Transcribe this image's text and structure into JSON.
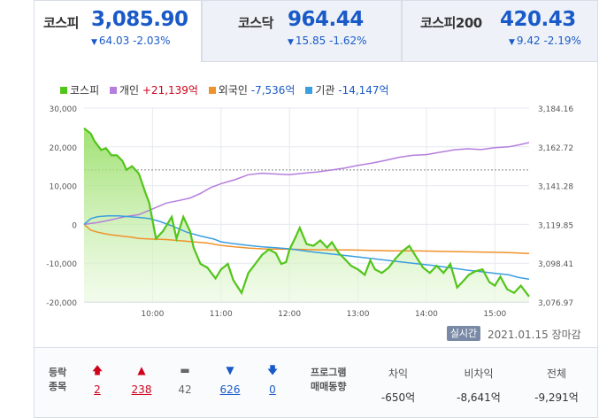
{
  "tabs": [
    {
      "name": "코스피",
      "value": "3,085.90",
      "change": "64.03 -2.03%",
      "active": true
    },
    {
      "name": "코스닥",
      "value": "964.44",
      "change": "15.85 -1.62%",
      "active": false
    },
    {
      "name": "코스피200",
      "value": "420.43",
      "change": "9.42 -2.19%",
      "active": false
    }
  ],
  "legend": {
    "kospi": "코스피",
    "individual": "개인",
    "individual_value": "+21,139억",
    "foreign": "외국인",
    "foreign_value": "-7,536억",
    "institution": "기관",
    "institution_value": "-14,147억"
  },
  "status": {
    "realtime_badge": "실시간",
    "date": "2021.01.15",
    "market_status": "장마감"
  },
  "breadth": {
    "label_line1": "등락",
    "label_line2": "종목",
    "upper_limit": "2",
    "rise": "238",
    "flat": "42",
    "fall": "626",
    "lower_limit": "0"
  },
  "program": {
    "label_line1": "프로그램",
    "label_line2": "매매동향",
    "arbitrage_label": "차익",
    "arbitrage_value": "-650억",
    "non_arbitrage_label": "비차익",
    "non_arbitrage_value": "-8,641억",
    "total_label": "전체",
    "total_value": "-9,291억"
  },
  "colors": {
    "kospi": "#52c41a",
    "individual": "#b57edc",
    "foreign": "#f0922b",
    "institution": "#3b9ee0",
    "up": "#d0021b",
    "down": "#1a5ac8"
  },
  "chart_data": {
    "type": "line",
    "x_ticks": [
      "10:00",
      "11:00",
      "12:00",
      "13:00",
      "14:00",
      "15:00"
    ],
    "y_left_ticks": [
      "30,000",
      "20,000",
      "10,000",
      "0",
      "-10,000",
      "-20,000"
    ],
    "y_left_range": [
      -20000,
      30000
    ],
    "y_right_ticks": [
      "3,184.16",
      "3,162.72",
      "3,141.28",
      "3,119.85",
      "3,098.41",
      "3,076.97"
    ],
    "y_right_range": [
      3076.97,
      3184.16
    ],
    "reference_line_right": 3149.93,
    "x_range_hours": [
      9.0,
      15.5
    ],
    "series": [
      {
        "name": "코스피",
        "axis": "right",
        "x": [
          9.0,
          9.1,
          9.15,
          9.25,
          9.32,
          9.4,
          9.48,
          9.56,
          9.62,
          9.7,
          9.8,
          9.9,
          9.95,
          10.05,
          10.15,
          10.28,
          10.35,
          10.45,
          10.55,
          10.6,
          10.7,
          10.8,
          10.92,
          11.0,
          11.1,
          11.18,
          11.3,
          11.4,
          11.5,
          11.6,
          11.7,
          11.8,
          11.88,
          11.95,
          12.0,
          12.08,
          12.15,
          12.25,
          12.35,
          12.45,
          12.55,
          12.62,
          12.72,
          12.8,
          12.9,
          13.0,
          13.1,
          13.18,
          13.25,
          13.35,
          13.45,
          13.55,
          13.65,
          13.75,
          13.85,
          13.95,
          14.05,
          14.15,
          14.25,
          14.35,
          14.45,
          14.55,
          14.62,
          14.72,
          14.82,
          14.92,
          15.0,
          15.08,
          15.18,
          15.28,
          15.38,
          15.5
        ],
        "values": [
          3173,
          3170,
          3166,
          3161,
          3162,
          3158,
          3158,
          3155,
          3150,
          3152,
          3148,
          3137,
          3132,
          3112,
          3116,
          3124,
          3112,
          3124,
          3116,
          3107,
          3098,
          3096,
          3090,
          3095,
          3098,
          3089,
          3082,
          3093,
          3098,
          3103,
          3106,
          3104,
          3098,
          3099,
          3106,
          3112,
          3118,
          3109,
          3108,
          3111,
          3107,
          3110,
          3104,
          3101,
          3097,
          3095,
          3092,
          3100,
          3095,
          3093,
          3096,
          3101,
          3105,
          3108,
          3102,
          3096,
          3093,
          3097,
          3093,
          3098,
          3085,
          3089,
          3092,
          3094,
          3095,
          3088,
          3086,
          3091,
          3084,
          3082,
          3086,
          3080
        ]
      },
      {
        "name": "개인",
        "axis": "left",
        "x": [
          9.0,
          9.2,
          9.4,
          9.6,
          9.8,
          10.0,
          10.2,
          10.4,
          10.55,
          10.7,
          10.85,
          11.0,
          11.2,
          11.4,
          11.6,
          11.8,
          12.0,
          12.2,
          12.4,
          12.6,
          12.8,
          13.0,
          13.2,
          13.4,
          13.6,
          13.8,
          14.0,
          14.2,
          14.4,
          14.6,
          14.8,
          15.0,
          15.2,
          15.35,
          15.5
        ],
        "values": [
          0,
          500,
          1200,
          2000,
          2500,
          4000,
          5500,
          6200,
          6800,
          8000,
          9500,
          10500,
          11500,
          12800,
          13200,
          13000,
          12800,
          13200,
          13500,
          14000,
          14500,
          15200,
          15800,
          16500,
          17300,
          17800,
          18000,
          18600,
          19200,
          19500,
          19300,
          19800,
          20000,
          20500,
          21100
        ]
      },
      {
        "name": "외국인",
        "axis": "left",
        "x": [
          9.0,
          9.1,
          9.2,
          9.3,
          9.4,
          9.5,
          9.6,
          9.7,
          9.8,
          9.9,
          10.0,
          10.2,
          10.4,
          10.6,
          10.8,
          11.0,
          11.2,
          11.4,
          11.6,
          11.8,
          12.0,
          12.3,
          12.6,
          12.9,
          13.2,
          13.5,
          13.8,
          14.1,
          14.4,
          14.7,
          15.0,
          15.25,
          15.5
        ],
        "values": [
          0,
          -1500,
          -2000,
          -2400,
          -2700,
          -2900,
          -3100,
          -3300,
          -3600,
          -3700,
          -3800,
          -3900,
          -4200,
          -4500,
          -4800,
          -5400,
          -5800,
          -6100,
          -6300,
          -6400,
          -6400,
          -6500,
          -6600,
          -6600,
          -6700,
          -6800,
          -6800,
          -6900,
          -7000,
          -7100,
          -7200,
          -7300,
          -7500
        ]
      },
      {
        "name": "기관",
        "axis": "left",
        "x": [
          9.0,
          9.1,
          9.2,
          9.35,
          9.5,
          9.65,
          9.8,
          9.95,
          10.1,
          10.3,
          10.5,
          10.7,
          10.9,
          11.0,
          11.2,
          11.4,
          11.6,
          11.8,
          12.0,
          12.3,
          12.6,
          12.9,
          13.2,
          13.5,
          13.8,
          14.1,
          14.4,
          14.6,
          14.8,
          15.0,
          15.2,
          15.35,
          15.5
        ],
        "values": [
          0,
          1500,
          2000,
          2200,
          2200,
          2000,
          1800,
          1500,
          800,
          -500,
          -2000,
          -3000,
          -3800,
          -4500,
          -5000,
          -5400,
          -5800,
          -6000,
          -6300,
          -7000,
          -7600,
          -8200,
          -8800,
          -9400,
          -10000,
          -10600,
          -11300,
          -11800,
          -12200,
          -12600,
          -13000,
          -13700,
          -14100
        ]
      }
    ]
  }
}
